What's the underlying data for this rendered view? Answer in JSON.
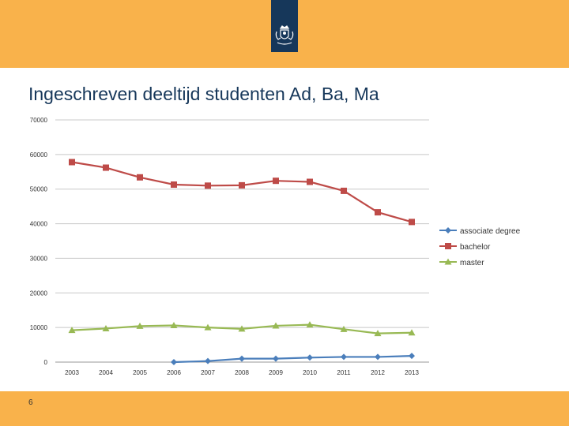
{
  "slide": {
    "title": "Ingeschreven deeltijd studenten Ad, Ba, Ma",
    "page_number": "6",
    "logo_icon": "coat-of-arms-icon",
    "colors": {
      "band": "#f9b24b",
      "logo": "#16375a",
      "title": "#16375a"
    }
  },
  "chart_data": {
    "type": "line",
    "title": "",
    "xlabel": "",
    "ylabel": "",
    "x": [
      "2003",
      "2004",
      "2005",
      "2006",
      "2007",
      "2008",
      "2009",
      "2010",
      "2011",
      "2012",
      "2013"
    ],
    "ylim": [
      0,
      70000
    ],
    "yticks": [
      "0",
      "10000",
      "20000",
      "30000",
      "40000",
      "50000",
      "60000",
      "70000"
    ],
    "grid": true,
    "legend_position": "right",
    "series": [
      {
        "name": "associate degree",
        "color": "#4a7ebb",
        "marker": "diamond",
        "values": [
          null,
          null,
          null,
          0,
          300,
          1000,
          1000,
          1300,
          1500,
          1500,
          1800
        ]
      },
      {
        "name": "bachelor",
        "color": "#be4b48",
        "marker": "square",
        "values": [
          57800,
          56200,
          53400,
          51300,
          51000,
          51100,
          52400,
          52100,
          49500,
          43300,
          40500
        ]
      },
      {
        "name": "master",
        "color": "#98b954",
        "marker": "triangle",
        "values": [
          9200,
          9700,
          10400,
          10600,
          10000,
          9600,
          10500,
          10800,
          9500,
          8300,
          8500
        ]
      }
    ]
  }
}
